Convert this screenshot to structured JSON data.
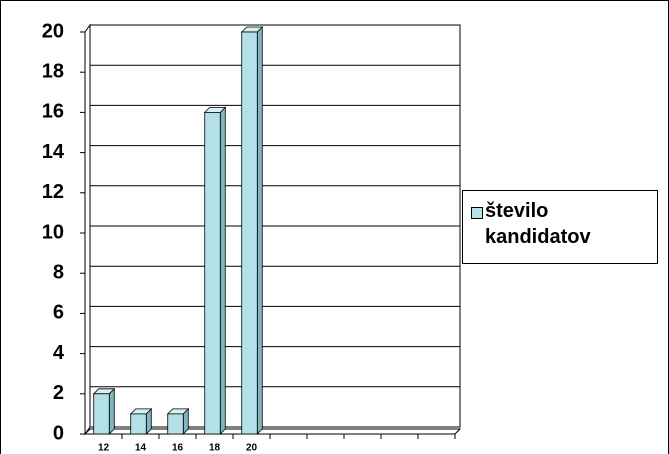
{
  "chart_data": {
    "type": "bar",
    "categories": [
      "12",
      "14",
      "16",
      "18",
      "20",
      null,
      null,
      null,
      null,
      null
    ],
    "series": [
      {
        "name": "število kandidatov",
        "color": "#b4e1e8",
        "values": [
          2,
          1,
          1,
          16,
          20,
          null,
          null,
          null,
          null,
          null
        ]
      }
    ],
    "ylim": [
      0,
      20
    ],
    "yticks": [
      0,
      2,
      4,
      6,
      8,
      10,
      12,
      14,
      16,
      18,
      20
    ],
    "grid": true,
    "legend": "right"
  }
}
